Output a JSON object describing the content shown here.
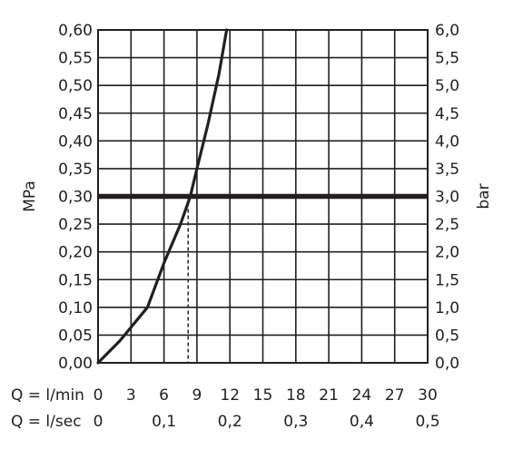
{
  "chart_data": {
    "type": "line",
    "left_axis_label": "MPa",
    "right_axis_label": "bar",
    "left_ticks": [
      "0,00",
      "0,05",
      "0,10",
      "0,15",
      "0,20",
      "0,25",
      "0,30",
      "0,35",
      "0,40",
      "0,45",
      "0,50",
      "0,55",
      "0,60"
    ],
    "right_ticks": [
      "0,0",
      "0,5",
      "1,0",
      "1,5",
      "2,0",
      "2,5",
      "3,0",
      "3,5",
      "4,0",
      "4,5",
      "5,0",
      "5,5",
      "6,0"
    ],
    "xlabel_min": "Q = l/min",
    "xlabel_sec": "Q = l/sec",
    "x_ticks_min": [
      "0",
      "3",
      "6",
      "9",
      "12",
      "15",
      "18",
      "21",
      "24",
      "27",
      "30"
    ],
    "x_ticks_sec": [
      "0",
      "0,1",
      "0,2",
      "0,3",
      "0,4",
      "0,5"
    ],
    "xlim": [
      0,
      30
    ],
    "ylim": [
      0,
      0.6
    ],
    "grid": true,
    "series": [
      {
        "x": [
          0,
          2,
          4.5,
          6,
          7.5,
          8.4,
          9,
          10,
          11,
          11.7
        ],
        "y": [
          0.0,
          0.04,
          0.1,
          0.18,
          0.25,
          0.3,
          0.35,
          0.43,
          0.52,
          0.6
        ]
      }
    ],
    "reference_line": {
      "y": 0.3
    },
    "marker_line": {
      "x": 8.2,
      "y": 0.3
    }
  }
}
